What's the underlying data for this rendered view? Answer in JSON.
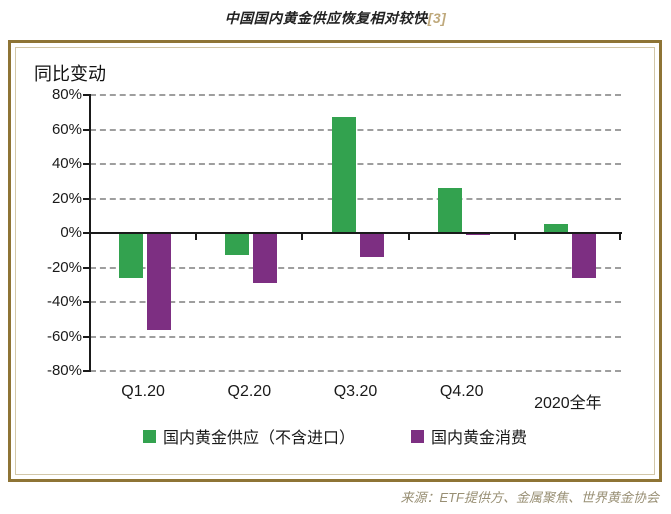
{
  "title": {
    "text": "中国国内黄金供应恢复相对较快",
    "ref": "[3]"
  },
  "source_note": "来源：ETF提供方、金属聚焦、世界黄金协会",
  "colors": {
    "frame_border": "#8e7435",
    "frame_inner_border": "#d2c7a8",
    "axis": "#1a1a1a",
    "gridline": "#9e9e9e",
    "title_ref": "#bfa97c",
    "source_text": "#988f74"
  },
  "chart_data": {
    "type": "bar",
    "title": "中国国内黄金供应恢复相对较快",
    "ylabel": "同比变动",
    "categories": [
      "Q1.20",
      "Q2.20",
      "Q3.20",
      "Q4.20",
      "2020全年"
    ],
    "series": [
      {
        "name": "国内黄金供应（不含进口）",
        "color": "#33a24f",
        "values": [
          -26,
          -13,
          67,
          26,
          5
        ]
      },
      {
        "name": "国内黄金消费",
        "color": "#7d2f82",
        "values": [
          -56,
          -29,
          -14,
          -1,
          -26
        ]
      }
    ],
    "ylim": [
      -80,
      80
    ],
    "ytick_step": 20,
    "ytick_values": [
      80,
      60,
      40,
      20,
      0,
      -20,
      -40,
      -60,
      -80
    ],
    "ytick_labels": [
      "80%",
      "60%",
      "40%",
      "20%",
      "0%",
      "-20%",
      "-40%",
      "-60%",
      "-80%"
    ],
    "grid": "horizontal-dashed",
    "legend_position": "bottom"
  }
}
